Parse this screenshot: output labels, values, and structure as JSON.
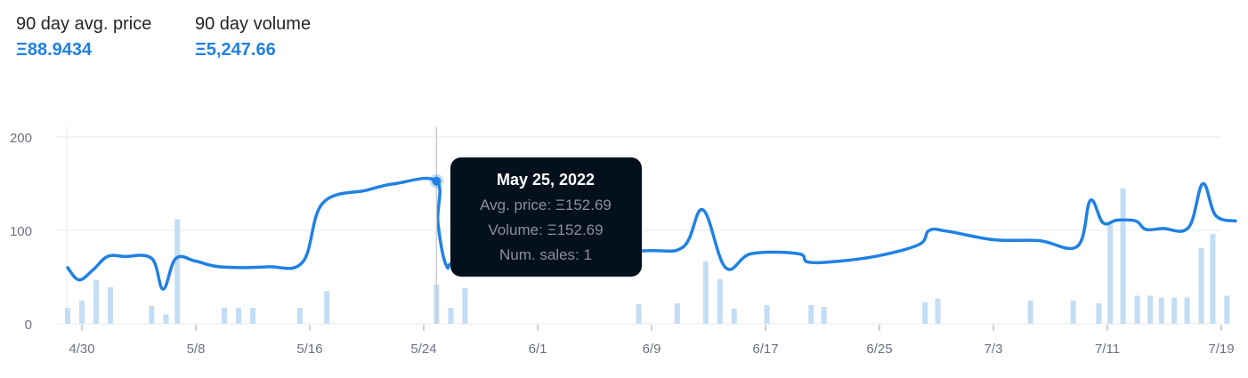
{
  "stats": {
    "avg_price_label": "90 day avg. price",
    "avg_price_value": "Ξ88.9434",
    "volume_label": "90 day volume",
    "volume_value": "Ξ5,247.66"
  },
  "tooltip": {
    "date": "May 25, 2022",
    "avg_price": "Avg. price: Ξ152.69",
    "volume": "Volume: Ξ152.69",
    "num_sales": "Num. sales: 1"
  },
  "colors": {
    "accent": "#2081e2",
    "bar": "#c3ddf5",
    "tooltip_bg": "#04111d",
    "grid": "#e5e8eb"
  },
  "chart_data": {
    "type": "line",
    "x_ticks": [
      {
        "label": "4/30",
        "day": 0
      },
      {
        "label": "5/8",
        "day": 8
      },
      {
        "label": "5/16",
        "day": 16
      },
      {
        "label": "5/24",
        "day": 24
      },
      {
        "label": "6/1",
        "day": 32
      },
      {
        "label": "6/9",
        "day": 40
      },
      {
        "label": "6/17",
        "day": 48
      },
      {
        "label": "6/25",
        "day": 56
      },
      {
        "label": "7/3",
        "day": 64
      },
      {
        "label": "7/11",
        "day": 72
      },
      {
        "label": "7/19",
        "day": 80
      }
    ],
    "y_ticks": [
      0,
      100,
      200
    ],
    "ylim": [
      0,
      200
    ],
    "series": [
      {
        "kind": "line",
        "points": [
          [
            -1,
            60
          ],
          [
            -0.2,
            47
          ],
          [
            0.8,
            58
          ],
          [
            1.8,
            72
          ],
          [
            3,
            72
          ],
          [
            4.9,
            70
          ],
          [
            5.7,
            37
          ],
          [
            6.6,
            70
          ],
          [
            8,
            67
          ],
          [
            9.7,
            61
          ],
          [
            13,
            61
          ],
          [
            15.5,
            66
          ],
          [
            16.9,
            129
          ],
          [
            20,
            143
          ],
          [
            22,
            150
          ],
          [
            24.9,
            152.69
          ],
          [
            25,
            108
          ],
          [
            25.6,
            62
          ],
          [
            26.5,
            67
          ],
          [
            32,
            72
          ],
          [
            39.3,
            78
          ],
          [
            42.2,
            82
          ],
          [
            43.6,
            122
          ],
          [
            45.2,
            60
          ],
          [
            47,
            75
          ],
          [
            50.3,
            75
          ],
          [
            51,
            66
          ],
          [
            53.2,
            67
          ],
          [
            56,
            73
          ],
          [
            58.8,
            85
          ],
          [
            59.5,
            100
          ],
          [
            60.8,
            99
          ],
          [
            64,
            90
          ],
          [
            67.2,
            89
          ],
          [
            69.9,
            83
          ],
          [
            70.8,
            132
          ],
          [
            71.7,
            108
          ],
          [
            72.7,
            111
          ],
          [
            74,
            110
          ],
          [
            74.7,
            101
          ],
          [
            75.9,
            102
          ],
          [
            77.7,
            103
          ],
          [
            78.7,
            150
          ],
          [
            79.6,
            116
          ],
          [
            81,
            110
          ]
        ]
      },
      {
        "kind": "bar",
        "bars": [
          [
            -1,
            17
          ],
          [
            0,
            25
          ],
          [
            1,
            47
          ],
          [
            2,
            39
          ],
          [
            4.9,
            19
          ],
          [
            5.9,
            10
          ],
          [
            6.7,
            112
          ],
          [
            10,
            17
          ],
          [
            11,
            17
          ],
          [
            12,
            17
          ],
          [
            15.3,
            17
          ],
          [
            17.2,
            35
          ],
          [
            24.9,
            42
          ],
          [
            25.9,
            17
          ],
          [
            26.9,
            38
          ],
          [
            39.1,
            21
          ],
          [
            41.8,
            22
          ],
          [
            43.8,
            67
          ],
          [
            44.8,
            48
          ],
          [
            45.8,
            16
          ],
          [
            48.1,
            20
          ],
          [
            51.2,
            20
          ],
          [
            52.1,
            18
          ],
          [
            59.2,
            23
          ],
          [
            60.1,
            27
          ],
          [
            66.6,
            25
          ],
          [
            69.6,
            25
          ],
          [
            71.4,
            22
          ],
          [
            72.2,
            107
          ],
          [
            73.1,
            145
          ],
          [
            74.1,
            30
          ],
          [
            75,
            30
          ],
          [
            75.8,
            28
          ],
          [
            76.7,
            28
          ],
          [
            77.6,
            28
          ],
          [
            78.6,
            81
          ],
          [
            79.4,
            96
          ],
          [
            80.4,
            30
          ]
        ]
      }
    ],
    "highlight": {
      "day": 24.9,
      "value": 152.69
    }
  }
}
